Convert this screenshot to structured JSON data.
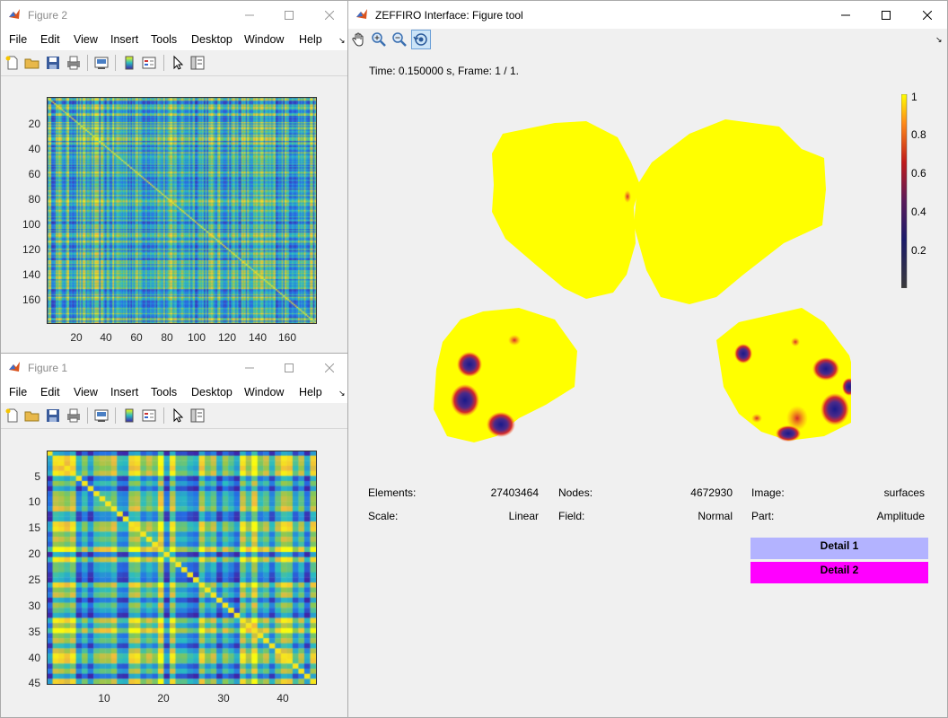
{
  "figure2": {
    "title": "Figure 2",
    "menu": [
      "File",
      "Edit",
      "View",
      "Insert",
      "Tools",
      "Desktop",
      "Window",
      "Help"
    ],
    "yticks": [
      "20",
      "40",
      "60",
      "80",
      "100",
      "120",
      "140",
      "160"
    ],
    "xticks": [
      "20",
      "40",
      "60",
      "80",
      "100",
      "120",
      "140",
      "160"
    ]
  },
  "figure1": {
    "title": "Figure 1",
    "menu": [
      "File",
      "Edit",
      "View",
      "Insert",
      "Tools",
      "Desktop",
      "Window",
      "Help"
    ],
    "yticks": [
      "5",
      "10",
      "15",
      "20",
      "25",
      "30",
      "35",
      "40",
      "45"
    ],
    "xticks": [
      "10",
      "20",
      "30",
      "40"
    ]
  },
  "zeffiro": {
    "title": "ZEFFIRO Interface: Figure tool",
    "time_label": "Time: 0.150000 s, Frame: 1 / 1.",
    "colorbar_ticks": [
      "1",
      "0.8",
      "0.6",
      "0.4",
      "0.2"
    ],
    "info": {
      "elements_label": "Elements:",
      "elements_value": "27403464",
      "nodes_label": "Nodes:",
      "nodes_value": "4672930",
      "image_label": "Image:",
      "image_value": "surfaces",
      "scale_label": "Scale:",
      "scale_value": "Linear",
      "field_label": "Field:",
      "field_value": "Normal",
      "part_label": "Part:",
      "part_value": "Amplitude"
    },
    "detail1": "Detail 1",
    "detail2": "Detail 2",
    "detail1_color": "#b3b3ff",
    "detail2_color": "#ff00ff"
  },
  "colors": {
    "parula_low": "#3e26a8",
    "parula_mid": "#2bbcc0",
    "parula_high": "#f9fb0e",
    "brain_yellow": "#ffff00"
  }
}
